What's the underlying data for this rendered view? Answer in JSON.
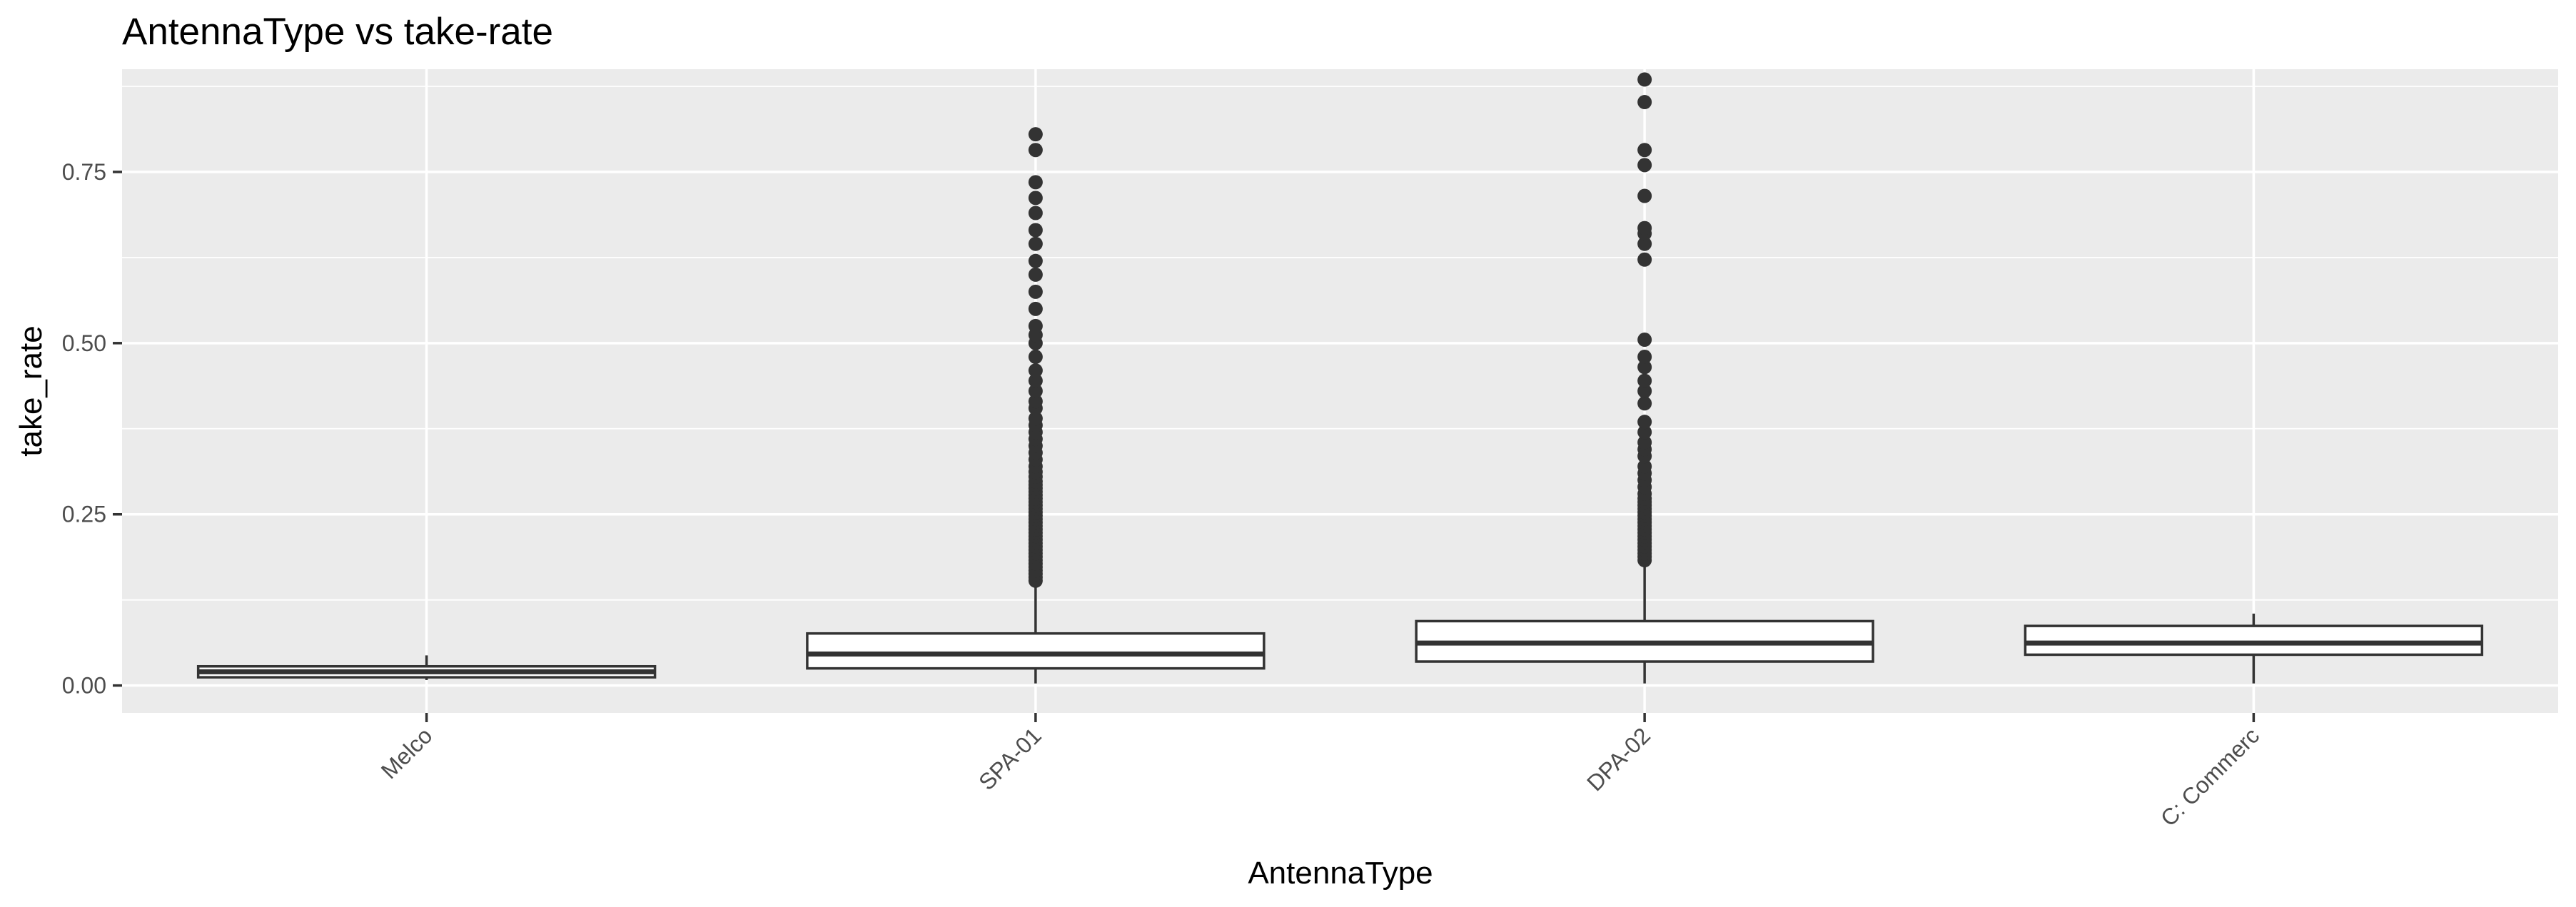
{
  "chart_data": {
    "type": "boxplot",
    "title": "AntennaType vs take-rate",
    "xlabel": "AntennaType",
    "ylabel": "take_rate",
    "ylim": [
      -0.04,
      0.9
    ],
    "yticks": [
      0.0,
      0.25,
      0.5,
      0.75
    ],
    "ytick_labels": [
      "0.00",
      "0.25",
      "0.50",
      "0.75"
    ],
    "grid": true,
    "colors": {
      "panel": "#ebebeb",
      "box_fill": "#ffffff",
      "box_line": "#333333",
      "grid": "#ffffff"
    },
    "categories": [
      "Melco",
      "SPA-01",
      "DPA-02",
      "C: Commerc"
    ],
    "boxes": [
      {
        "category": "Melco",
        "whisker_low": 0.008,
        "q1": 0.012,
        "median": 0.02,
        "q3": 0.028,
        "whisker_high": 0.044,
        "outliers": []
      },
      {
        "category": "SPA-01",
        "whisker_low": 0.003,
        "q1": 0.025,
        "median": 0.046,
        "q3": 0.076,
        "whisker_high": 0.15,
        "outliers": [
          0.153,
          0.158,
          0.163,
          0.168,
          0.173,
          0.178,
          0.183,
          0.188,
          0.193,
          0.198,
          0.203,
          0.208,
          0.213,
          0.218,
          0.223,
          0.228,
          0.233,
          0.238,
          0.243,
          0.248,
          0.253,
          0.258,
          0.263,
          0.268,
          0.273,
          0.278,
          0.283,
          0.288,
          0.293,
          0.298,
          0.305,
          0.312,
          0.32,
          0.33,
          0.34,
          0.35,
          0.36,
          0.37,
          0.38,
          0.39,
          0.405,
          0.415,
          0.43,
          0.445,
          0.46,
          0.48,
          0.5,
          0.512,
          0.525,
          0.55,
          0.575,
          0.6,
          0.62,
          0.645,
          0.665,
          0.69,
          0.712,
          0.735,
          0.782,
          0.805
        ]
      },
      {
        "category": "DPA-02",
        "whisker_low": 0.003,
        "q1": 0.035,
        "median": 0.062,
        "q3": 0.094,
        "whisker_high": 0.18,
        "outliers": [
          0.183,
          0.188,
          0.193,
          0.198,
          0.203,
          0.208,
          0.213,
          0.218,
          0.223,
          0.228,
          0.233,
          0.238,
          0.243,
          0.248,
          0.253,
          0.258,
          0.263,
          0.268,
          0.273,
          0.28,
          0.29,
          0.3,
          0.31,
          0.32,
          0.335,
          0.345,
          0.355,
          0.37,
          0.385,
          0.412,
          0.43,
          0.445,
          0.465,
          0.48,
          0.505,
          0.622,
          0.645,
          0.66,
          0.668,
          0.715,
          0.76,
          0.782,
          0.852,
          0.885
        ]
      },
      {
        "category": "C: Commerc",
        "whisker_low": 0.003,
        "q1": 0.045,
        "median": 0.062,
        "q3": 0.087,
        "whisker_high": 0.105,
        "outliers": []
      }
    ]
  }
}
